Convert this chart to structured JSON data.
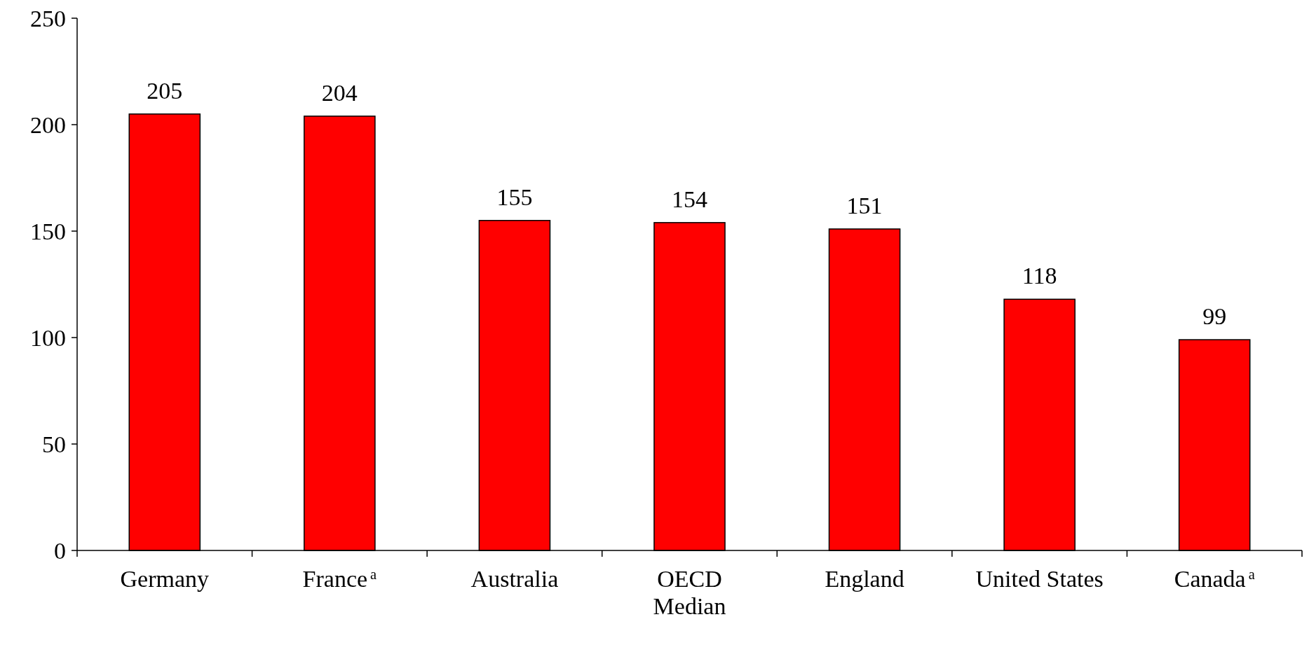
{
  "chart_data": {
    "type": "bar",
    "categories": [
      "Germany",
      "France$^{a}$",
      "Australia",
      "OECD Median",
      "England",
      "United States",
      "Canada$^{a}$"
    ],
    "values": [
      205,
      204,
      155,
      154,
      151,
      118,
      99
    ],
    "color": "#ff0000",
    "ylim": [
      0,
      250
    ],
    "yticks": [
      0,
      50,
      100,
      150,
      200,
      250
    ],
    "data_labels": true,
    "grid": false
  }
}
